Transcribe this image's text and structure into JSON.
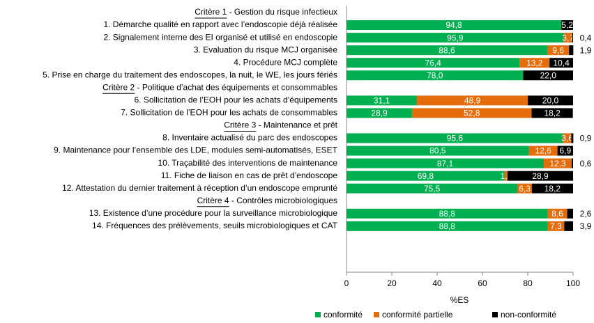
{
  "chart_data": {
    "type": "stacked_barh",
    "categories": [
      "Critère 1 - Gestion du risque infectieux",
      "1. Démarche qualité en rapport avec l’endoscopie déjà réalisée",
      "2. Signalement interne des EI organisé et utilisé en endoscopie",
      "3. Evaluation du risque MCJ organisée",
      "4. Procédure MCJ complète",
      "5. Prise en charge du traitement des endoscopes, la nuit, le WE, les jours fériés",
      "Critère 2 - Politique d’achat des équipements et consommables",
      "6. Sollicitation de l’EOH pour les achats d’équipements",
      "7. Sollicitation de l’EOH pour les achats de consommables",
      "Critère 3 - Maintenance et prêt",
      "8. Inventaire actualisé du parc des endoscopes",
      "9. Maintenance pour l’ensemble des LDE, modules semi-automatisés,  ESET",
      "10. Traçabilité des interventions de maintenance",
      "11. Fiche de liaison en cas de prêt d’endoscope",
      "12. Attestation du dernier traitement à réception d’un endoscope emprunté",
      "Critère 4 - Contrôles microbiologiques",
      "13. Existence d’une procédure pour la surveillance microbiologique",
      "14. Fréquences des prélèvements, seuils microbiologiques et CAT"
    ],
    "series": [
      {
        "name": "conformité",
        "color": "#00b050",
        "values": [
          null,
          94.8,
          95.9,
          88.6,
          76.4,
          78.0,
          null,
          31.1,
          28.9,
          null,
          95.6,
          80.5,
          87.1,
          69.8,
          75.5,
          null,
          88.8,
          88.8
        ],
        "value_labels": [
          null,
          "94,8",
          "95,9",
          "88,6",
          "76,4",
          "78,0",
          null,
          "31,1",
          "28,9",
          null,
          "95,6",
          "80,5",
          "87,1",
          "69,8",
          "75,5",
          null,
          "88,8",
          "88,8"
        ]
      },
      {
        "name": "conformité partielle",
        "color": "#e46c0a",
        "values": [
          null,
          null,
          3.7,
          9.6,
          13.2,
          null,
          null,
          48.9,
          52.8,
          null,
          3.6,
          12.6,
          12.3,
          1.3,
          6.3,
          null,
          8.6,
          7.3
        ],
        "value_labels": [
          null,
          null,
          "3,7",
          "9,6",
          "13,2",
          null,
          null,
          "48,9",
          "52,8",
          null,
          "3,6",
          "12,6",
          "12,3",
          "1,3",
          "6,3",
          null,
          "8,6",
          "7,3"
        ]
      },
      {
        "name": "non-conformité",
        "color": "#000000",
        "values": [
          null,
          5.2,
          0.4,
          1.9,
          10.4,
          22.0,
          null,
          20.0,
          18.2,
          null,
          0.9,
          6.9,
          0.6,
          28.9,
          18.2,
          null,
          2.6,
          3.9
        ],
        "value_labels": [
          null,
          "5,2",
          "0,4",
          "1,9",
          "10,4",
          "22,0",
          null,
          "20,0",
          "18,2",
          null,
          "0,9",
          "6,9",
          "0,6",
          "28,9",
          "18,2",
          null,
          "2,6",
          "3,9"
        ]
      }
    ],
    "xlabel": "%ES",
    "xlim": [
      0,
      100
    ],
    "xticks": [
      0,
      20,
      40,
      60,
      80,
      100
    ],
    "legend": "bottom"
  }
}
